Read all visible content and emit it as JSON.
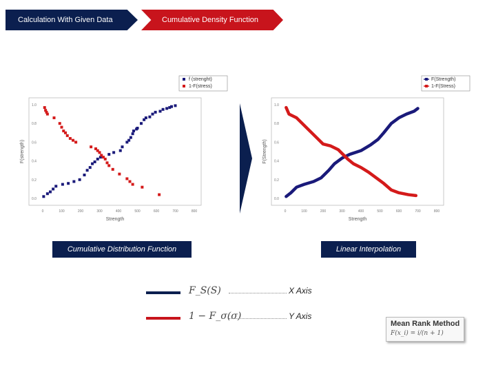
{
  "tabs": [
    {
      "label": "Calculation With Given Data"
    },
    {
      "label": "Cumulative Density Function"
    }
  ],
  "colors": {
    "navy": "#0b1f4f",
    "red": "#c8141c",
    "series_blue": "#1a1a7a",
    "series_red": "#d41a1a"
  },
  "chart_data": [
    {
      "type": "scatter",
      "ylabel": "F(strength)",
      "xlabel": "Strength",
      "xlim": [
        0,
        800
      ],
      "ylim": [
        0,
        1
      ],
      "xticks": [
        "0",
        "100",
        "200",
        "300",
        "400",
        "500",
        "600",
        "700",
        "800"
      ],
      "yticks": [
        "0.0",
        "0.2",
        "0.4",
        "0.6",
        "0.8",
        "1.0"
      ],
      "series": [
        {
          "name": "f (strenght)",
          "color": "#1a1a7a",
          "x": [
            5,
            25,
            40,
            55,
            70,
            105,
            135,
            165,
            195,
            220,
            235,
            250,
            262,
            275,
            290,
            305,
            350,
            375,
            410,
            420,
            445,
            455,
            465,
            475,
            480,
            495,
            500,
            520,
            535,
            545,
            565,
            580,
            595,
            620,
            635,
            655,
            670,
            680,
            700
          ],
          "y": [
            0.02,
            0.05,
            0.07,
            0.1,
            0.13,
            0.15,
            0.16,
            0.18,
            0.2,
            0.25,
            0.3,
            0.33,
            0.37,
            0.39,
            0.42,
            0.44,
            0.47,
            0.49,
            0.51,
            0.55,
            0.6,
            0.62,
            0.65,
            0.69,
            0.72,
            0.74,
            0.75,
            0.8,
            0.84,
            0.86,
            0.87,
            0.9,
            0.92,
            0.93,
            0.95,
            0.96,
            0.97,
            0.98,
            0.99
          ]
        },
        {
          "name": "1-F(stress)",
          "color": "#d41a1a",
          "x": [
            10,
            15,
            20,
            25,
            60,
            90,
            100,
            110,
            120,
            130,
            145,
            160,
            175,
            255,
            280,
            290,
            300,
            310,
            320,
            330,
            340,
            350,
            370,
            405,
            445,
            460,
            475,
            525,
            615
          ],
          "y": [
            0.97,
            0.94,
            0.92,
            0.9,
            0.86,
            0.8,
            0.76,
            0.72,
            0.7,
            0.67,
            0.64,
            0.62,
            0.6,
            0.55,
            0.53,
            0.51,
            0.49,
            0.46,
            0.44,
            0.42,
            0.38,
            0.35,
            0.31,
            0.26,
            0.21,
            0.18,
            0.15,
            0.12,
            0.04
          ]
        }
      ]
    },
    {
      "type": "line",
      "ylabel": "F(Strength)",
      "xlabel": "Strength",
      "xlim": [
        0,
        800
      ],
      "ylim": [
        0,
        1
      ],
      "xticks": [
        "0",
        "100",
        "200",
        "300",
        "400",
        "500",
        "600",
        "700",
        "800"
      ],
      "yticks": [
        "0.0",
        "0.2",
        "0.4",
        "0.6",
        "0.8",
        "1.0"
      ],
      "series": [
        {
          "name": "F(Strength)",
          "color": "#1a1a7a",
          "x": [
            5,
            30,
            60,
            100,
            150,
            190,
            230,
            260,
            300,
            340,
            370,
            400,
            450,
            490,
            520,
            560,
            600,
            640,
            680,
            700
          ],
          "y": [
            0.02,
            0.06,
            0.12,
            0.15,
            0.18,
            0.22,
            0.3,
            0.37,
            0.43,
            0.47,
            0.49,
            0.51,
            0.57,
            0.63,
            0.7,
            0.8,
            0.86,
            0.9,
            0.93,
            0.96
          ]
        },
        {
          "name": "1-F(Stress)",
          "color": "#d41a1a",
          "x": [
            5,
            20,
            60,
            100,
            140,
            170,
            200,
            240,
            280,
            300,
            330,
            360,
            400,
            440,
            480,
            520,
            560,
            600,
            650,
            690
          ],
          "y": [
            0.97,
            0.9,
            0.86,
            0.78,
            0.7,
            0.64,
            0.58,
            0.56,
            0.52,
            0.48,
            0.42,
            0.37,
            0.33,
            0.28,
            0.22,
            0.16,
            0.09,
            0.06,
            0.04,
            0.03
          ]
        }
      ]
    }
  ],
  "labels": {
    "left": "Cumulative Distribution Function",
    "right": "Linear Interpolation"
  },
  "legend": [
    {
      "formula": "F_S(S)",
      "axis": "X Axis",
      "color": "#0b1f4f"
    },
    {
      "formula": "1 − F_σ(σ)",
      "axis": "Y Axis",
      "color": "#c8141c"
    }
  ],
  "mean_rank": {
    "title": "Mean Rank Method",
    "formula": "F(x_i) = i/(n + 1)"
  }
}
